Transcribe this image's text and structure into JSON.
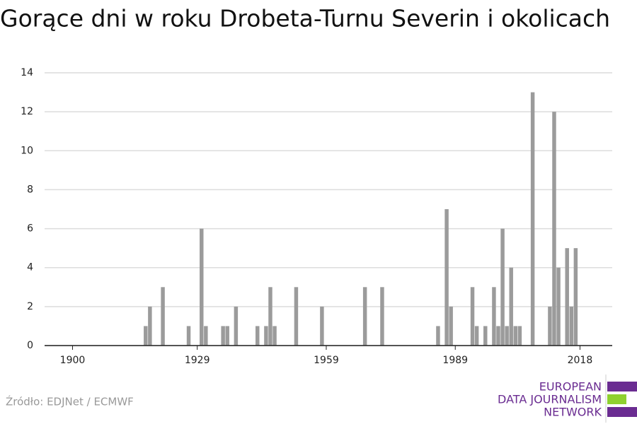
{
  "chart_data": {
    "type": "bar",
    "title": "Gorące dni w roku Drobeta-Turnu Severin i okolicach",
    "x": [
      1917,
      1918,
      1921,
      1927,
      1930,
      1931,
      1935,
      1936,
      1938,
      1943,
      1945,
      1946,
      1947,
      1952,
      1958,
      1968,
      1972,
      1985,
      1987,
      1988,
      1993,
      1994,
      1996,
      1998,
      1999,
      2000,
      2001,
      2002,
      2003,
      2004,
      2007,
      2011,
      2012,
      2013,
      2015,
      2016,
      2017
    ],
    "values": [
      1,
      2,
      3,
      1,
      6,
      1,
      1,
      1,
      2,
      1,
      1,
      3,
      1,
      3,
      2,
      3,
      3,
      1,
      7,
      2,
      3,
      1,
      1,
      3,
      1,
      6,
      1,
      4,
      1,
      1,
      13,
      2,
      12,
      4,
      5,
      2,
      5
    ],
    "color": "#9b9b9b",
    "xlim": [
      1893.5,
      2025.5
    ],
    "xticks": [
      1900,
      1929,
      1959,
      1989,
      2018
    ],
    "ylim": [
      0,
      14
    ],
    "yticks": [
      0,
      2,
      4,
      6,
      8,
      10,
      12,
      14
    ],
    "grid": true
  },
  "source": "Źródło: EDJNet / ECMWF",
  "logo": [
    "EUROPEAN",
    "DATA JOURNALISM",
    "NETWORK"
  ]
}
